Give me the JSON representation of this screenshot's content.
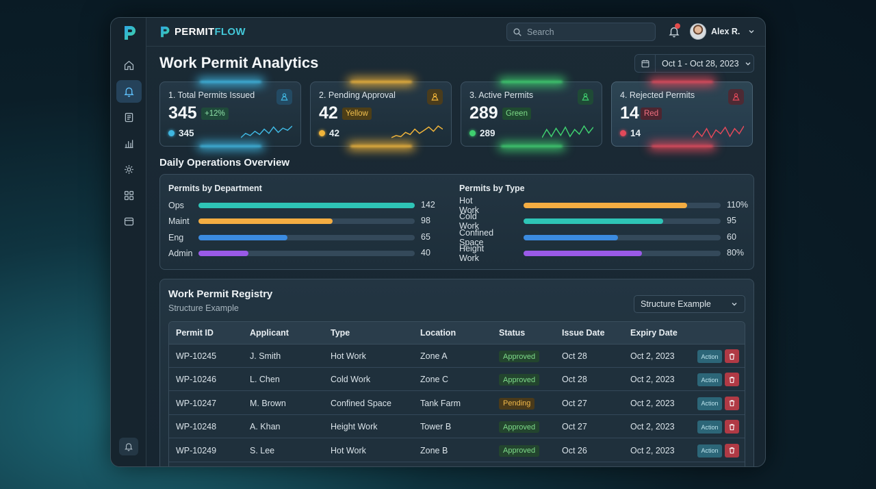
{
  "app": {
    "brand_part1": "PERMIT",
    "brand_part2": "FLOW"
  },
  "header": {
    "search_placeholder": "Search",
    "notification_count": "1",
    "user_name": "Alex R."
  },
  "sidebar": {
    "items": [
      {
        "icon": "home-icon",
        "active": false
      },
      {
        "icon": "bell-icon",
        "active": true
      },
      {
        "icon": "document-icon",
        "active": false
      },
      {
        "icon": "bar-chart-icon",
        "active": false
      },
      {
        "icon": "gear-icon",
        "active": false
      },
      {
        "icon": "grid-icon",
        "active": false
      },
      {
        "icon": "database-icon",
        "active": false
      }
    ],
    "bottom_icon": "bell-icon"
  },
  "page": {
    "title": "Work Permit Analytics",
    "date_range": "Oct 1 - Oct 28, 2023"
  },
  "cards": [
    {
      "label": "1. Total Permits Issued",
      "value": "345",
      "badge": "+12%",
      "footer": "345",
      "accent": "#3fb6e0",
      "badge_bg": "#1f4a3a",
      "badge_fg": "#8ee0a8",
      "icon_bg": "#234a63",
      "spark": [
        5,
        9,
        7,
        11,
        8,
        13,
        9,
        15,
        10,
        14,
        12,
        16
      ]
    },
    {
      "label": "2. Pending Approval",
      "value": "42",
      "badge": "Yellow",
      "footer": "42",
      "accent": "#f0b43a",
      "badge_bg": "#4d3e17",
      "badge_fg": "#f2c04e",
      "icon_bg": "#4a3c1c",
      "spark": [
        4,
        6,
        5,
        9,
        7,
        12,
        8,
        11,
        14,
        10,
        15,
        12
      ]
    },
    {
      "label": "3. Active Permits",
      "value": "289",
      "badge": "Green",
      "footer": "289",
      "accent": "#3fcf6f",
      "badge_bg": "#1f4a30",
      "badge_fg": "#7fdc8a",
      "icon_bg": "#1f4a36",
      "spark": [
        5,
        12,
        6,
        13,
        7,
        14,
        6,
        12,
        8,
        15,
        9,
        14
      ]
    },
    {
      "label": "4. Rejected Permits",
      "value": "14",
      "badge": "Red",
      "footer": "14",
      "accent": "#e2495a",
      "badge_bg": "#4d2530",
      "badge_fg": "#f07080",
      "icon_bg": "#4d2a34",
      "spark": [
        6,
        11,
        7,
        13,
        6,
        12,
        9,
        14,
        7,
        13,
        9,
        15
      ]
    }
  ],
  "ops": {
    "section_title": "Daily Operations Overview",
    "dept": {
      "title": "Permits by Department",
      "rows": [
        {
          "label": "Ops",
          "value": "142",
          "fraction": 1.0,
          "color": "#2ec4b6"
        },
        {
          "label": "Maint",
          "value": "98",
          "fraction": 0.62,
          "color": "#f4ad42"
        },
        {
          "label": "Eng",
          "value": "65",
          "fraction": 0.41,
          "color": "#3b8be0"
        },
        {
          "label": "Admin",
          "value": "40",
          "fraction": 0.23,
          "color": "#9a5ae8"
        }
      ]
    },
    "type": {
      "title": "Permits by Type",
      "rows": [
        {
          "label": "Hot Work",
          "value": "110%",
          "fraction": 0.83,
          "color": "#f4ad42"
        },
        {
          "label": "Cold Work",
          "value": "95",
          "fraction": 0.71,
          "color": "#2ec4b6"
        },
        {
          "label": "Confined Space",
          "value": "60",
          "fraction": 0.48,
          "color": "#3b8be0"
        },
        {
          "label": "Height Work",
          "value": "80%",
          "fraction": 0.6,
          "color": "#9a5ae8"
        }
      ]
    }
  },
  "registry": {
    "title": "Work Permit Registry",
    "subtitle": "Structure Example",
    "select_value": "Structure Example",
    "columns": [
      "Permit ID",
      "Applicant",
      "Type",
      "Location",
      "Status",
      "Issue Date",
      "Expiry Date"
    ],
    "action_label": "Action",
    "rows": [
      {
        "id": "WP-10245",
        "applicant": "J. Smith",
        "type": "Hot Work",
        "location": "Zone A",
        "status": "Approved",
        "issue": "Oct 28",
        "expiry": "Oct 2, 2023"
      },
      {
        "id": "WP-10246",
        "applicant": "L. Chen",
        "type": "Cold Work",
        "location": "Zone C",
        "status": "Approved",
        "issue": "Oct 28",
        "expiry": "Oct 2, 2023"
      },
      {
        "id": "WP-10247",
        "applicant": "M. Brown",
        "type": "Confined Space",
        "location": "Tank Farm",
        "status": "Pending",
        "issue": "Oct 27",
        "expiry": "Oct 2, 2023"
      },
      {
        "id": "WP-10248",
        "applicant": "A. Khan",
        "type": "Height Work",
        "location": "Tower B",
        "status": "Approved",
        "issue": "Oct 27",
        "expiry": "Oct 2, 2023"
      },
      {
        "id": "WP-10249",
        "applicant": "S. Lee",
        "type": "Hot Work",
        "location": "Zone B",
        "status": "Approved",
        "issue": "Oct 26",
        "expiry": "Oct 2, 2023"
      }
    ]
  }
}
